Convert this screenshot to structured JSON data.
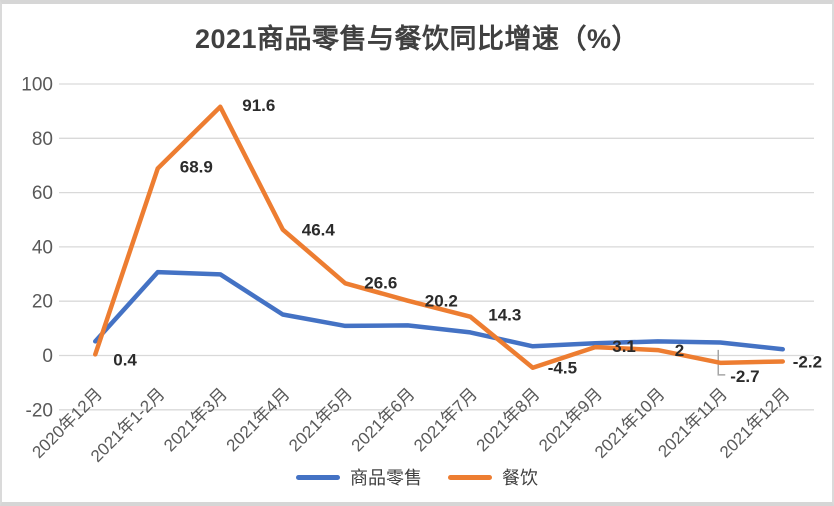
{
  "title": "2021商品零售与餐饮同比增速（%）",
  "chart_data": {
    "type": "line",
    "title": "2021商品零售与餐饮同比增速（%）",
    "categories": [
      "2020年12月",
      "2021年1-2月",
      "2021年3月",
      "2021年4月",
      "2021年5月",
      "2021年6月",
      "2021年7月",
      "2021年8月",
      "2021年9月",
      "2021年10月",
      "2021年11月",
      "2021年12月"
    ],
    "series": [
      {
        "name": "商品零售",
        "color": "#4472C4",
        "values": [
          5.2,
          30.7,
          29.9,
          15.1,
          10.9,
          11.1,
          8.5,
          3.4,
          4.5,
          5.2,
          4.8,
          2.3
        ],
        "data_labels_shown": false
      },
      {
        "name": "餐饮",
        "color": "#ED7D31",
        "values": [
          0.4,
          68.9,
          91.6,
          46.4,
          26.6,
          20.2,
          14.3,
          -4.5,
          3.1,
          2,
          -2.7,
          -2.2
        ],
        "data_labels_shown": true,
        "labels": [
          "0.4",
          "68.9",
          "91.6",
          "46.4",
          "26.6",
          "20.2",
          "14.3",
          "-4.5",
          "3.1",
          "2",
          "-2.7",
          "-2.2"
        ]
      }
    ],
    "ylim": [
      -20,
      100
    ],
    "yticks": [
      100,
      80,
      60,
      40,
      20,
      0,
      -20
    ],
    "grid": true,
    "legend_position": "bottom",
    "colors": {
      "gridline": "#d9d9d9",
      "axis_text": "#595959",
      "data_label_text": "#2b2b2b",
      "leader_line": "#a6a6a6",
      "title_text": "#404040",
      "frame_border": "#d6d6d6"
    }
  },
  "legend": {
    "items": [
      {
        "label": "商品零售",
        "color": "#4472C4"
      },
      {
        "label": "餐饮",
        "color": "#ED7D31"
      }
    ]
  }
}
